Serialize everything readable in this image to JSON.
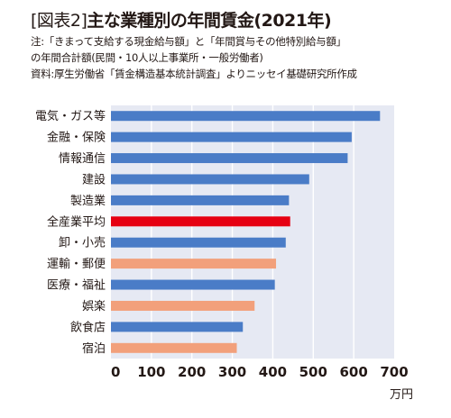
{
  "header": {
    "title_bracket": "[図表2]",
    "title_main": "主な業種別の年間賃金(2021年)",
    "note_line1": "注:「きまって支給する現金給与額」と「年間賞与その他特別給与額」",
    "note_line2": "の年間合計額(民間・10人以上事業所・一般労働者)",
    "source_line": "資料:厚生労働省「賃金構造基本統計調査」よりニッセイ基礎研究所作成"
  },
  "chart_data": {
    "type": "bar",
    "orientation": "horizontal",
    "categories": [
      "電気・ガス等",
      "金融・保険",
      "情報通信",
      "建設",
      "製造業",
      "全産業平均",
      "卸・小売",
      "運輸・郵便",
      "医療・福祉",
      "娯楽",
      "飲食店",
      "宿泊"
    ],
    "values": [
      665,
      595,
      585,
      490,
      440,
      443,
      432,
      408,
      405,
      355,
      326,
      311
    ],
    "bar_colors": [
      "#4a7cc7",
      "#4a7cc7",
      "#4a7cc7",
      "#4a7cc7",
      "#4a7cc7",
      "#e60012",
      "#4a7cc7",
      "#f2a07b",
      "#4a7cc7",
      "#f2a07b",
      "#4a7cc7",
      "#f2a07b"
    ],
    "xlim": [
      0,
      700
    ],
    "xticks": [
      0,
      100,
      200,
      300,
      400,
      500,
      600,
      700
    ],
    "unit": "万円",
    "grid": true,
    "colors": {
      "blue": "#4a7cc7",
      "red": "#e60012",
      "orange": "#f2a07b",
      "plot_bg": "#e6e9f3",
      "grid": "#ffffff"
    }
  }
}
